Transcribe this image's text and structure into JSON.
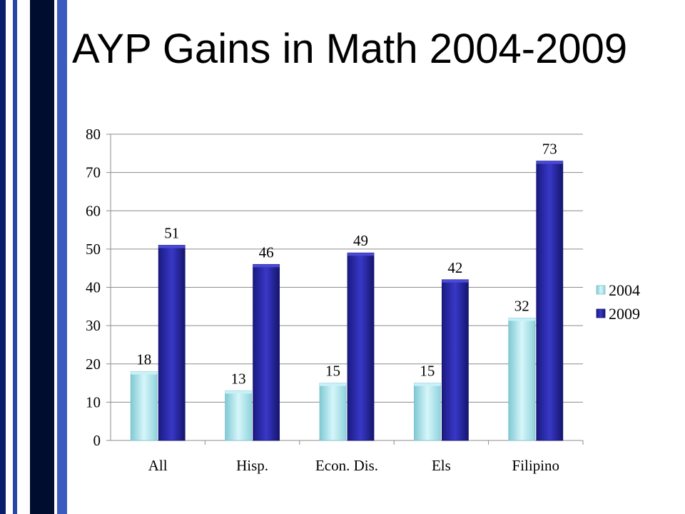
{
  "slide": {
    "title": "AYP Gains in Math 2004-2009",
    "stripe_colors": [
      "#001a66",
      "#1f3d99",
      "#000d33",
      "#2e4fb0"
    ]
  },
  "chart_data": {
    "type": "bar",
    "title": "",
    "xlabel": "",
    "ylabel": "",
    "categories": [
      "All",
      "Hisp.",
      "Econ. Dis.",
      "Els",
      "Filipino"
    ],
    "series": [
      {
        "name": "2004",
        "values": [
          18,
          13,
          15,
          15,
          32
        ],
        "color": "#a8e4ec"
      },
      {
        "name": "2009",
        "values": [
          51,
          46,
          49,
          42,
          73
        ],
        "color": "#2a2aa8"
      }
    ],
    "ylim": [
      0,
      80
    ],
    "yticks": [
      0,
      10,
      20,
      30,
      40,
      50,
      60,
      70,
      80
    ],
    "grid": true,
    "legend": "right",
    "data_labels": true
  }
}
